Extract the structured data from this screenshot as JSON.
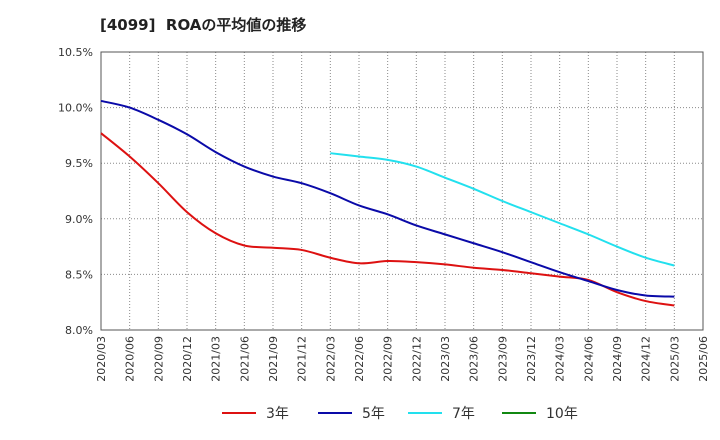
{
  "chart_data": {
    "type": "line",
    "title": "[4099]  ROAの平均値の推移",
    "xlabel": "",
    "ylabel": "",
    "x": [
      "2020/03",
      "2020/06",
      "2020/09",
      "2020/12",
      "2021/03",
      "2021/06",
      "2021/09",
      "2021/12",
      "2022/03",
      "2022/06",
      "2022/09",
      "2022/12",
      "2023/03",
      "2023/06",
      "2023/09",
      "2023/12",
      "2024/03",
      "2024/06",
      "2024/09",
      "2024/12",
      "2025/03",
      "2025/06"
    ],
    "ylim": [
      8.0,
      10.5
    ],
    "yticks": [
      "10.5%",
      "10.0%",
      "9.5%",
      "9.0%",
      "8.5%",
      "8.0%"
    ],
    "ytick_values": [
      10.5,
      10.0,
      9.5,
      9.0,
      8.5,
      8.0
    ],
    "grid": true,
    "legend_position": "bottom",
    "series": [
      {
        "name": "3年",
        "color": "#dd1111",
        "values": [
          9.77,
          9.56,
          9.32,
          9.06,
          8.87,
          8.76,
          8.74,
          8.72,
          8.65,
          8.6,
          8.62,
          8.61,
          8.59,
          8.56,
          8.54,
          8.51,
          8.48,
          8.45,
          8.34,
          8.26,
          8.22,
          null
        ]
      },
      {
        "name": "5年",
        "color": "#0a0aa8",
        "values": [
          10.06,
          10.0,
          9.89,
          9.76,
          9.6,
          9.47,
          9.38,
          9.32,
          9.23,
          9.12,
          9.04,
          8.94,
          8.86,
          8.78,
          8.7,
          8.61,
          8.52,
          8.44,
          8.36,
          8.31,
          8.3,
          null
        ]
      },
      {
        "name": "7年",
        "color": "#22e0ee",
        "values": [
          null,
          null,
          null,
          null,
          null,
          null,
          null,
          null,
          9.59,
          9.56,
          9.53,
          9.47,
          9.37,
          9.27,
          9.16,
          9.06,
          8.96,
          8.86,
          8.75,
          8.65,
          8.58,
          null
        ]
      },
      {
        "name": "10年",
        "color": "#118811",
        "values": [
          null,
          null,
          null,
          null,
          null,
          null,
          null,
          null,
          null,
          null,
          null,
          null,
          null,
          null,
          null,
          null,
          null,
          null,
          null,
          null,
          null,
          null
        ]
      }
    ]
  }
}
